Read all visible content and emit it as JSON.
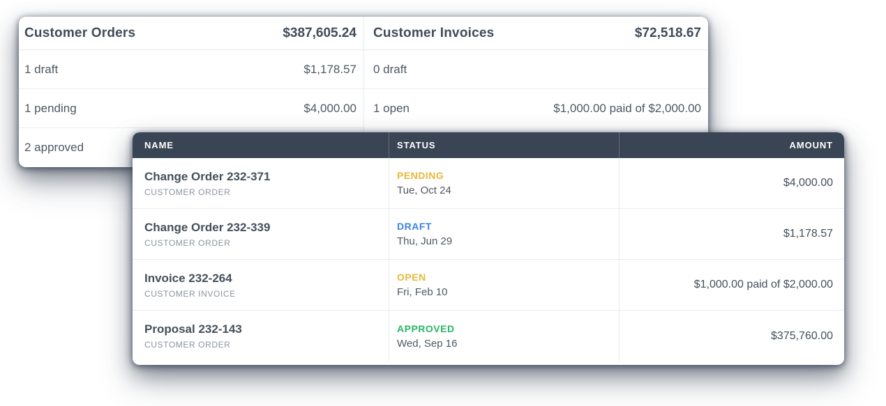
{
  "summary": {
    "panels": [
      {
        "title": "Customer Orders",
        "total": "$387,605.24",
        "rows": [
          {
            "label": "1 draft",
            "amount": "$1,178.57"
          },
          {
            "label": "1 pending",
            "amount": "$4,000.00"
          },
          {
            "label": "2 approved",
            "amount": ""
          }
        ]
      },
      {
        "title": "Customer Invoices",
        "total": "$72,518.67",
        "rows": [
          {
            "label": "0 draft",
            "amount": ""
          },
          {
            "label": "1 open",
            "amount": "$1,000.00 paid of $2,000.00"
          }
        ]
      }
    ]
  },
  "table": {
    "columns": [
      "NAME",
      "STATUS",
      "AMOUNT"
    ],
    "rows": [
      {
        "name": "Change Order 232-371",
        "type": "CUSTOMER ORDER",
        "status": "PENDING",
        "status_color": "#e9b73a",
        "date": "Tue, Oct 24",
        "amount": "$4,000.00"
      },
      {
        "name": "Change Order 232-339",
        "type": "CUSTOMER ORDER",
        "status": "DRAFT",
        "status_color": "#3c82e6",
        "date": "Thu, Jun 29",
        "amount": "$1,178.57"
      },
      {
        "name": "Invoice 232-264",
        "type": "CUSTOMER INVOICE",
        "status": "OPEN",
        "status_color": "#e9b73a",
        "date": "Fri, Feb 10",
        "amount": "$1,000.00 paid of $2,000.00"
      },
      {
        "name": "Proposal 232-143",
        "type": "CUSTOMER ORDER",
        "status": "APPROVED",
        "status_color": "#2bb566",
        "date": "Wed, Sep 16",
        "amount": "$375,760.00"
      }
    ]
  },
  "colors": {
    "table_header_bg": "#394554",
    "status_pending": "#e9b73a",
    "status_draft": "#3c82e6",
    "status_open": "#e9b73a",
    "status_approved": "#2bb566",
    "card_shadow": "#364052"
  }
}
